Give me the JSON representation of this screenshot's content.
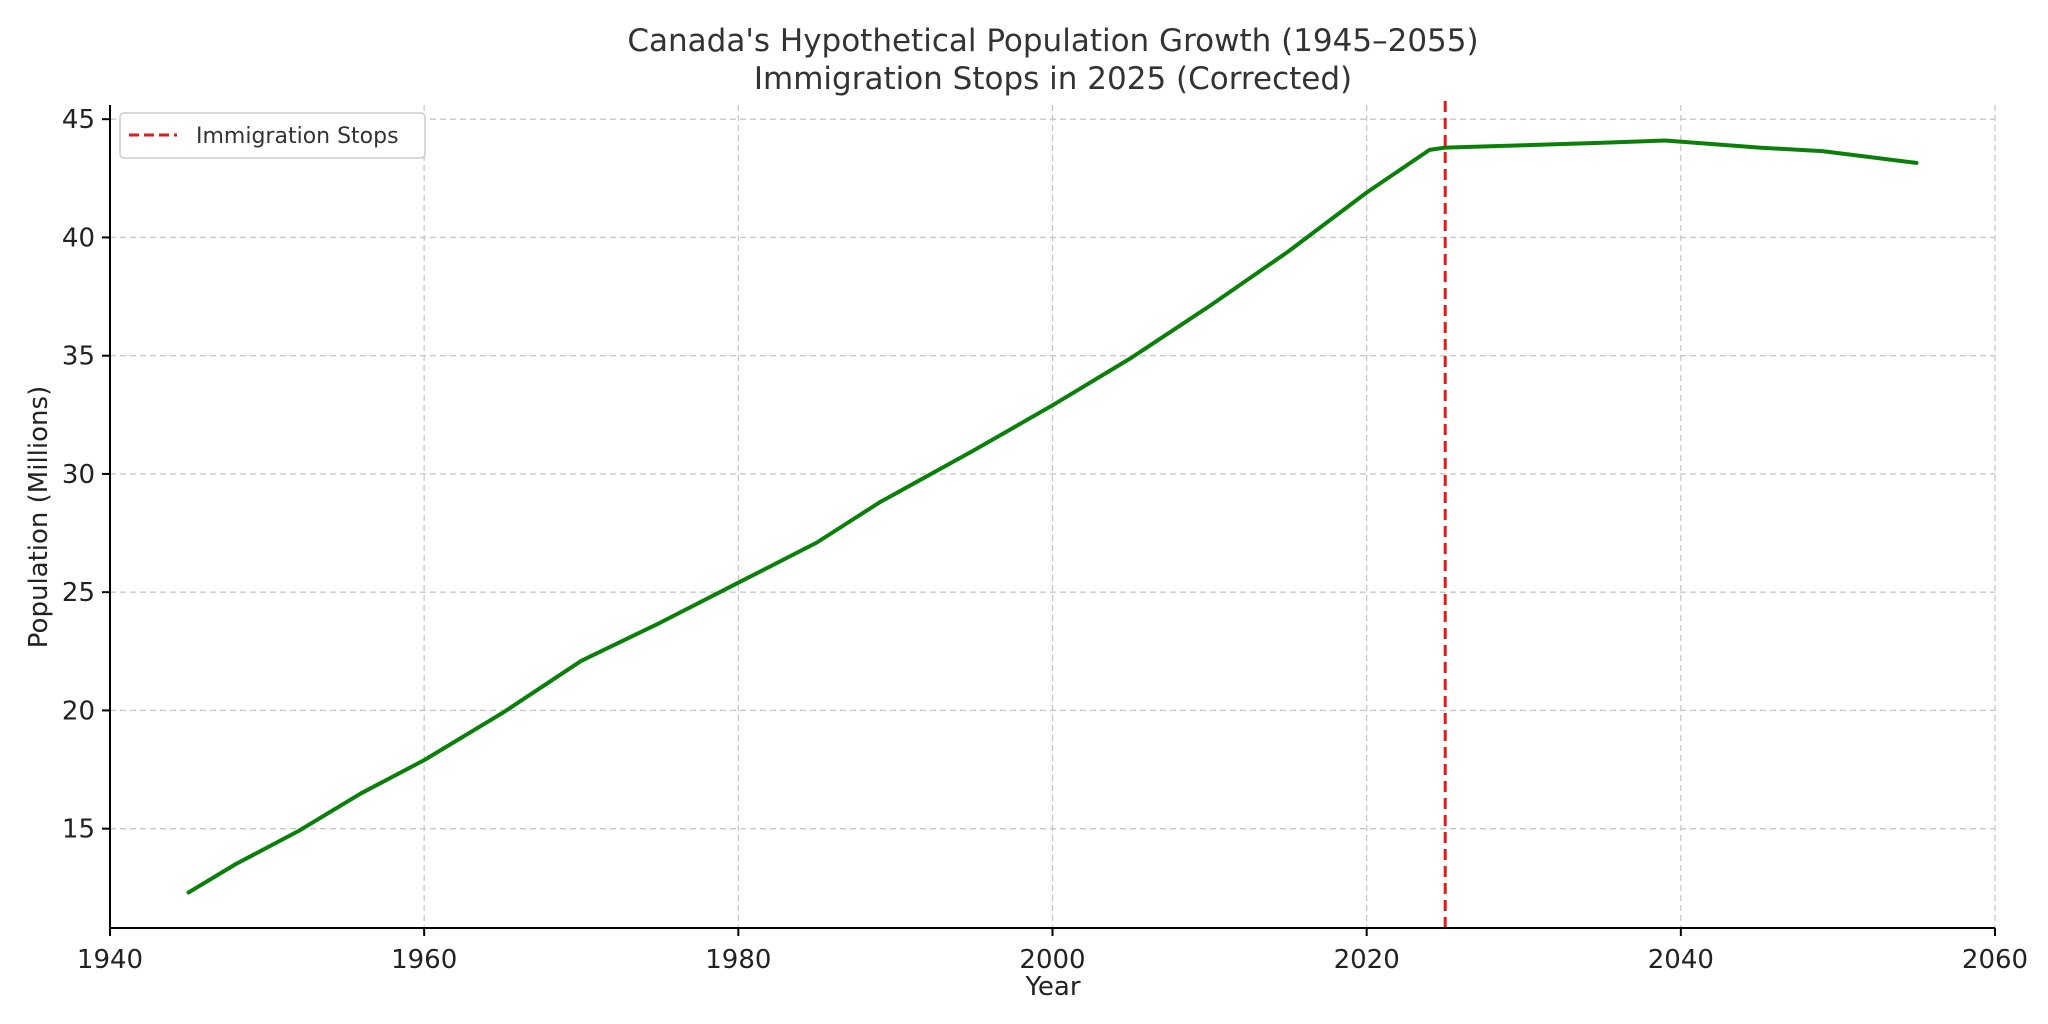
{
  "chart_data": {
    "type": "line",
    "title": "Canada's Hypothetical Population Growth (1945–2055)",
    "subtitle": "Immigration Stops in 2025 (Corrected)",
    "xlabel": "Year",
    "ylabel": "Population (Millions)",
    "xlim": [
      1940,
      2060
    ],
    "ylim": [
      10.8,
      45.6
    ],
    "xticks": [
      1940,
      1960,
      1980,
      2000,
      2020,
      2040,
      2060
    ],
    "yticks": [
      15,
      20,
      25,
      30,
      35,
      40,
      45
    ],
    "grid": true,
    "legend": {
      "placement": "top-left",
      "entries": [
        {
          "label": "Immigration Stops",
          "style": "dashed",
          "color": "#e31a1c"
        }
      ]
    },
    "series": [
      {
        "color": "#0a7f0a",
        "x": [
          1945,
          1948,
          1952,
          1956,
          1960,
          1965,
          1970,
          1975,
          1980,
          1985,
          1989,
          1995,
          2000,
          2005,
          2010,
          2015,
          2020,
          2024,
          2025,
          2030,
          2035,
          2039,
          2045,
          2049,
          2052,
          2055
        ],
        "y": [
          12.3,
          13.5,
          14.9,
          16.5,
          17.9,
          19.9,
          22.1,
          23.7,
          25.4,
          27.1,
          28.8,
          31.0,
          32.9,
          34.9,
          37.1,
          39.4,
          41.9,
          43.7,
          43.8,
          43.9,
          44.0,
          44.1,
          43.8,
          43.65,
          43.4,
          43.15
        ]
      }
    ],
    "vlines": [
      {
        "x": 2025,
        "label": "Immigration Stops",
        "color": "#e31a1c",
        "style": "dashed"
      }
    ]
  }
}
